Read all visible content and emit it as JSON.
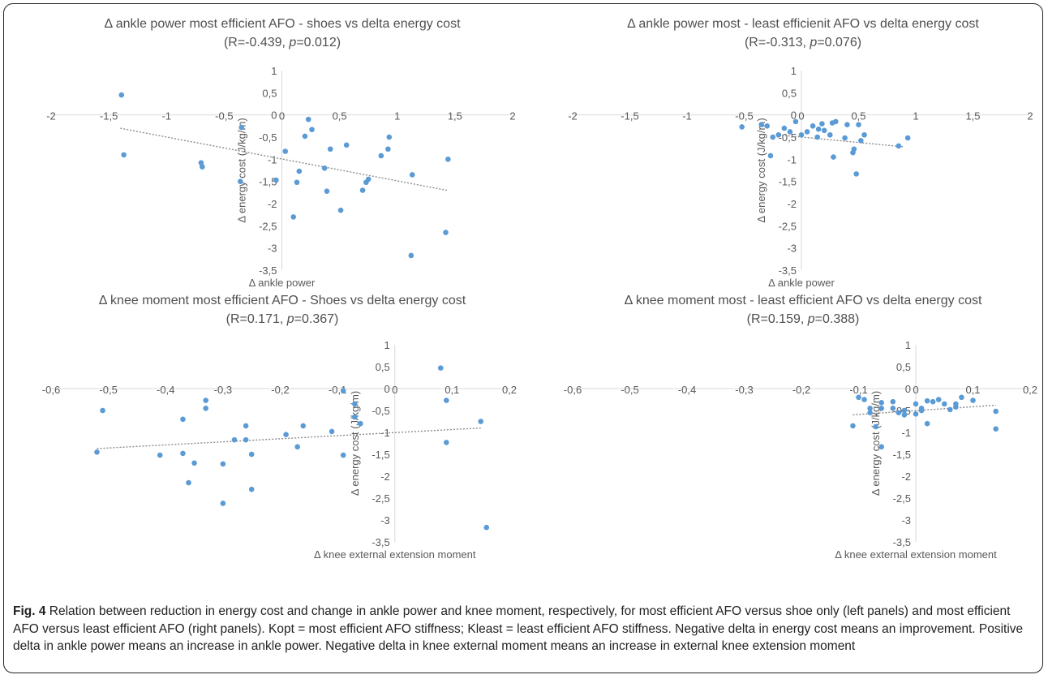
{
  "figure": {
    "caption_label": "Fig. 4",
    "caption_text": " Relation between reduction in energy cost and change in ankle power and knee moment, respectively, for most efficient AFO versus shoe only (left panels) and most efficient AFO versus least efficient AFO (right panels). Kopt = most efficient AFO stiffness; Kleast = least efficient AFO stiffness. Negative delta in energy cost means an improvement. Positive delta in ankle power means an increase in ankle power. Negative delta in knee external moment means an increase in external knee extension moment"
  },
  "style": {
    "point_color": "#5b9bd5",
    "trend_color": "#8c8c8c",
    "axis_color": "#d9d9d9"
  },
  "chart_data": [
    {
      "type": "scatter",
      "title": "Δ ankle power most efficient AFO - shoes vs delta energy cost",
      "subtitle_pre": "(R=-0.439, ",
      "subtitle_p": "p",
      "subtitle_post": "=0.012)",
      "xlabel": "Δ ankle power",
      "ylabel": "Δ energy cost (J/kg/m)",
      "xlim": [
        -2,
        2
      ],
      "ylim": [
        -3.5,
        1
      ],
      "xticks": [
        -2,
        -1.5,
        -1,
        -0.5,
        0,
        0.5,
        1,
        1.5,
        2
      ],
      "yticks": [
        -3.5,
        -3,
        -2.5,
        -2,
        -1.5,
        -1,
        -0.5,
        0,
        0.5,
        1
      ],
      "xtick_labels": [
        "-2",
        "-1,5",
        "-1",
        "-0,5",
        "0",
        "0,5",
        "1",
        "1,5",
        "2"
      ],
      "ytick_labels": [
        "-3,5",
        "-3",
        "-2,5",
        "-2",
        "-1,5",
        "-1",
        "-0,5",
        "0",
        "0,5",
        "1"
      ],
      "trendline": {
        "x": [
          -1.4,
          1.43
        ],
        "y": [
          -0.3,
          -1.7
        ]
      },
      "points": [
        [
          -1.39,
          0.45
        ],
        [
          -1.37,
          -0.9
        ],
        [
          -0.7,
          -1.08
        ],
        [
          -0.69,
          -1.17
        ],
        [
          -0.35,
          -0.28
        ],
        [
          -0.36,
          -1.5
        ],
        [
          -0.05,
          -1.47
        ],
        [
          0.03,
          -0.82
        ],
        [
          0.1,
          -2.3
        ],
        [
          0.13,
          -1.52
        ],
        [
          0.15,
          -1.27
        ],
        [
          0.2,
          -0.48
        ],
        [
          0.23,
          -0.1
        ],
        [
          0.26,
          -0.33
        ],
        [
          0.37,
          -1.2
        ],
        [
          0.39,
          -1.72
        ],
        [
          0.42,
          -0.77
        ],
        [
          0.51,
          -2.15
        ],
        [
          0.56,
          -0.68
        ],
        [
          0.7,
          -1.7
        ],
        [
          0.73,
          -1.52
        ],
        [
          0.75,
          -1.45
        ],
        [
          0.86,
          -0.92
        ],
        [
          0.92,
          -0.77
        ],
        [
          0.93,
          -0.5
        ],
        [
          1.13,
          -1.35
        ],
        [
          1.12,
          -3.17
        ],
        [
          1.42,
          -2.65
        ],
        [
          1.44,
          -1.0
        ]
      ]
    },
    {
      "type": "scatter",
      "title": "Δ ankle power most - least efficienit AFO vs delta energy cost",
      "subtitle_pre": "(R=-0.313, ",
      "subtitle_p": "p",
      "subtitle_post": "=0.076)",
      "xlabel": "Δ ankle power",
      "ylabel": "Δ energy cost (J/kg/m)",
      "xlim": [
        -2,
        2
      ],
      "ylim": [
        -3.5,
        1
      ],
      "xticks": [
        -2,
        -1.5,
        -1,
        -0.5,
        0,
        0.5,
        1,
        1.5,
        2
      ],
      "yticks": [
        -3.5,
        -3,
        -2.5,
        -2,
        -1.5,
        -1,
        -0.5,
        0,
        0.5,
        1
      ],
      "xtick_labels": [
        "-2",
        "-1,5",
        "-1",
        "-0,5",
        "0",
        "0,5",
        "1",
        "1,5",
        "2"
      ],
      "ytick_labels": [
        "-3,5",
        "-3",
        "-2,5",
        "-2",
        "-1,5",
        "-1",
        "-0,5",
        "0",
        "0,5",
        "1"
      ],
      "trendline": {
        "x": [
          -0.2,
          0.9
        ],
        "y": [
          -0.45,
          -0.72
        ]
      },
      "points": [
        [
          -0.52,
          -0.27
        ],
        [
          -0.35,
          -0.22
        ],
        [
          -0.3,
          -0.25
        ],
        [
          -0.27,
          -0.92
        ],
        [
          -0.25,
          -0.5
        ],
        [
          -0.2,
          -0.45
        ],
        [
          -0.15,
          -0.3
        ],
        [
          -0.1,
          -0.38
        ],
        [
          -0.05,
          -0.15
        ],
        [
          0.0,
          -0.45
        ],
        [
          0.05,
          -0.38
        ],
        [
          0.1,
          -0.25
        ],
        [
          0.14,
          -0.5
        ],
        [
          0.15,
          -0.32
        ],
        [
          0.18,
          -0.2
        ],
        [
          0.2,
          -0.35
        ],
        [
          0.25,
          -0.45
        ],
        [
          0.27,
          -0.18
        ],
        [
          0.3,
          -0.15
        ],
        [
          0.28,
          -0.95
        ],
        [
          0.38,
          -0.52
        ],
        [
          0.4,
          -0.22
        ],
        [
          0.45,
          -0.85
        ],
        [
          0.46,
          -0.77
        ],
        [
          0.48,
          -1.33
        ],
        [
          0.5,
          -0.22
        ],
        [
          0.52,
          -0.58
        ],
        [
          0.55,
          -0.45
        ],
        [
          0.85,
          -0.7
        ],
        [
          0.93,
          -0.52
        ]
      ]
    },
    {
      "type": "scatter",
      "title": "Δ knee moment most efficient AFO - Shoes vs delta energy cost",
      "subtitle_pre": "(R=0.171, ",
      "subtitle_p": "p",
      "subtitle_post": "=0.367)",
      "xlabel": "Δ knee external extension moment",
      "ylabel": "Δ energy cost (J/kg/m)",
      "xlim": [
        -0.6,
        0.2
      ],
      "ylim": [
        -3.5,
        1
      ],
      "xticks": [
        -0.6,
        -0.5,
        -0.4,
        -0.3,
        -0.2,
        -0.1,
        0,
        0.1,
        0.2
      ],
      "yticks": [
        -3.5,
        -3,
        -2.5,
        -2,
        -1.5,
        -1,
        -0.5,
        0,
        0.5,
        1
      ],
      "xtick_labels": [
        "-0,6",
        "-0,5",
        "-0,4",
        "-0,3",
        "-0,2",
        "-0,1",
        "0",
        "0,1",
        "0,2"
      ],
      "ytick_labels": [
        "-3,5",
        "-3",
        "-2,5",
        "-2",
        "-1,5",
        "-1",
        "-0,5",
        "0",
        "0,5",
        "1"
      ],
      "trendline": {
        "x": [
          -0.52,
          0.15
        ],
        "y": [
          -1.37,
          -0.9
        ]
      },
      "points": [
        [
          -0.52,
          -1.45
        ],
        [
          -0.51,
          -0.5
        ],
        [
          -0.41,
          -1.52
        ],
        [
          -0.37,
          -0.7
        ],
        [
          -0.37,
          -1.48
        ],
        [
          -0.36,
          -2.15
        ],
        [
          -0.35,
          -1.7
        ],
        [
          -0.33,
          -0.27
        ],
        [
          -0.33,
          -0.45
        ],
        [
          -0.3,
          -1.72
        ],
        [
          -0.3,
          -2.62
        ],
        [
          -0.28,
          -1.17
        ],
        [
          -0.26,
          -1.17
        ],
        [
          -0.26,
          -0.85
        ],
        [
          -0.25,
          -1.5
        ],
        [
          -0.25,
          -2.3
        ],
        [
          -0.19,
          -1.05
        ],
        [
          -0.17,
          -1.33
        ],
        [
          -0.16,
          -0.85
        ],
        [
          -0.11,
          -0.98
        ],
        [
          -0.09,
          -0.05
        ],
        [
          -0.09,
          -1.52
        ],
        [
          -0.07,
          -0.35
        ],
        [
          -0.07,
          -0.65
        ],
        [
          -0.06,
          -0.8
        ],
        [
          0.08,
          0.47
        ],
        [
          0.09,
          -0.27
        ],
        [
          0.09,
          -1.23
        ],
        [
          0.15,
          -0.75
        ],
        [
          0.16,
          -3.17
        ]
      ]
    },
    {
      "type": "scatter",
      "title": "Δ knee moment most - least efficient AFO vs delta energy cost",
      "subtitle_pre": "(R=0.159, ",
      "subtitle_p": "p",
      "subtitle_post": "=0.388)",
      "xlabel": "Δ knee external extension moment",
      "ylabel": "Δ energy cost (J/kg/m)",
      "xlim": [
        -0.6,
        0.2
      ],
      "ylim": [
        -3.5,
        1
      ],
      "xticks": [
        -0.6,
        -0.5,
        -0.4,
        -0.3,
        -0.2,
        -0.1,
        0,
        0.1,
        0.2
      ],
      "yticks": [
        -3.5,
        -3,
        -2.5,
        -2,
        -1.5,
        -1,
        -0.5,
        0,
        0.5,
        1
      ],
      "xtick_labels": [
        "-0,6",
        "-0,5",
        "-0,4",
        "-0,3",
        "-0,2",
        "-0,1",
        "0",
        "0,1",
        "0,2"
      ],
      "ytick_labels": [
        "-3,5",
        "-3",
        "-2,5",
        "-2",
        "-1,5",
        "-1",
        "-0,5",
        "0",
        "0,5",
        "1"
      ],
      "trendline": {
        "x": [
          -0.11,
          0.14
        ],
        "y": [
          -0.6,
          -0.38
        ]
      },
      "points": [
        [
          -0.11,
          -0.85
        ],
        [
          -0.1,
          -0.2
        ],
        [
          -0.09,
          -0.25
        ],
        [
          -0.08,
          -0.55
        ],
        [
          -0.08,
          -0.45
        ],
        [
          -0.07,
          -0.87
        ],
        [
          -0.06,
          -0.32
        ],
        [
          -0.06,
          -0.45
        ],
        [
          -0.06,
          -1.33
        ],
        [
          -0.04,
          -0.45
        ],
        [
          -0.04,
          -0.3
        ],
        [
          -0.03,
          -0.55
        ],
        [
          -0.02,
          -0.5
        ],
        [
          -0.02,
          -0.6
        ],
        [
          0.0,
          -0.35
        ],
        [
          0.0,
          -0.58
        ],
        [
          0.01,
          -0.5
        ],
        [
          0.01,
          -0.45
        ],
        [
          0.02,
          -0.28
        ],
        [
          0.02,
          -0.8
        ],
        [
          0.03,
          -0.3
        ],
        [
          0.04,
          -0.25
        ],
        [
          0.05,
          -0.35
        ],
        [
          0.06,
          -0.48
        ],
        [
          0.07,
          -0.42
        ],
        [
          0.07,
          -0.35
        ],
        [
          0.08,
          -0.2
        ],
        [
          0.1,
          -0.27
        ],
        [
          0.14,
          -0.52
        ],
        [
          0.14,
          -0.92
        ]
      ]
    }
  ]
}
